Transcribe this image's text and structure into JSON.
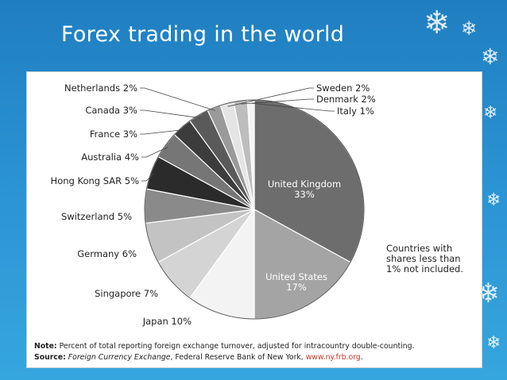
{
  "slide": {
    "title": "Forex trading in the world"
  },
  "chart_data": {
    "type": "pie",
    "slices": [
      {
        "label": "United Kingdom",
        "value": 33,
        "display": "United Kingdom\n33%",
        "color": "#6d6d6d",
        "label_inside": true
      },
      {
        "label": "United States",
        "value": 17,
        "display": "United States\n17%",
        "color": "#a4a4a4",
        "label_inside": true
      },
      {
        "label": "Japan",
        "value": 10,
        "display": "Japan 10%",
        "color": "#f3f3f3"
      },
      {
        "label": "Singapore",
        "value": 7,
        "display": "Singapore 7%",
        "color": "#d4d4d4"
      },
      {
        "label": "Germany",
        "value": 6,
        "display": "Germany 6%",
        "color": "#c3c3c3"
      },
      {
        "label": "Switzerland",
        "value": 5,
        "display": "Switzerland 5%",
        "color": "#8a8a8a"
      },
      {
        "label": "Hong Kong SAR",
        "value": 5,
        "display": "Hong Kong SAR 5%",
        "color": "#2b2b2b"
      },
      {
        "label": "Australia",
        "value": 4,
        "display": "Australia 4%",
        "color": "#767676"
      },
      {
        "label": "France",
        "value": 3,
        "display": "France 3%",
        "color": "#3c3c3c"
      },
      {
        "label": "Canada",
        "value": 3,
        "display": "Canada 3%",
        "color": "#5a5a5a"
      },
      {
        "label": "Netherlands",
        "value": 2,
        "display": "Netherlands 2%",
        "color": "#9a9a9a"
      },
      {
        "label": "Sweden",
        "value": 2,
        "display": "Sweden 2%",
        "color": "#e4e4e4"
      },
      {
        "label": "Denmark",
        "value": 2,
        "display": "Denmark 2%",
        "color": "#bdbdbd"
      },
      {
        "label": "Italy",
        "value": 1,
        "display": "Italy 1%",
        "color": "#f5f5f5"
      }
    ],
    "annotation": "Countries with\nshares less than\n1% not included."
  },
  "footnotes": {
    "note_label": "Note:",
    "note_text": " Percent of total reporting foreign exchange turnover, adjusted for intracountry double-counting.",
    "source_label": "Source:",
    "source_title": "Foreign Currency Exchange",
    "source_text": ", Federal Reserve Bank of New York, ",
    "source_link": "www.ny.frb.org",
    "source_end": "."
  },
  "decor": {
    "snowflake_icon": "snowflake-icon"
  }
}
